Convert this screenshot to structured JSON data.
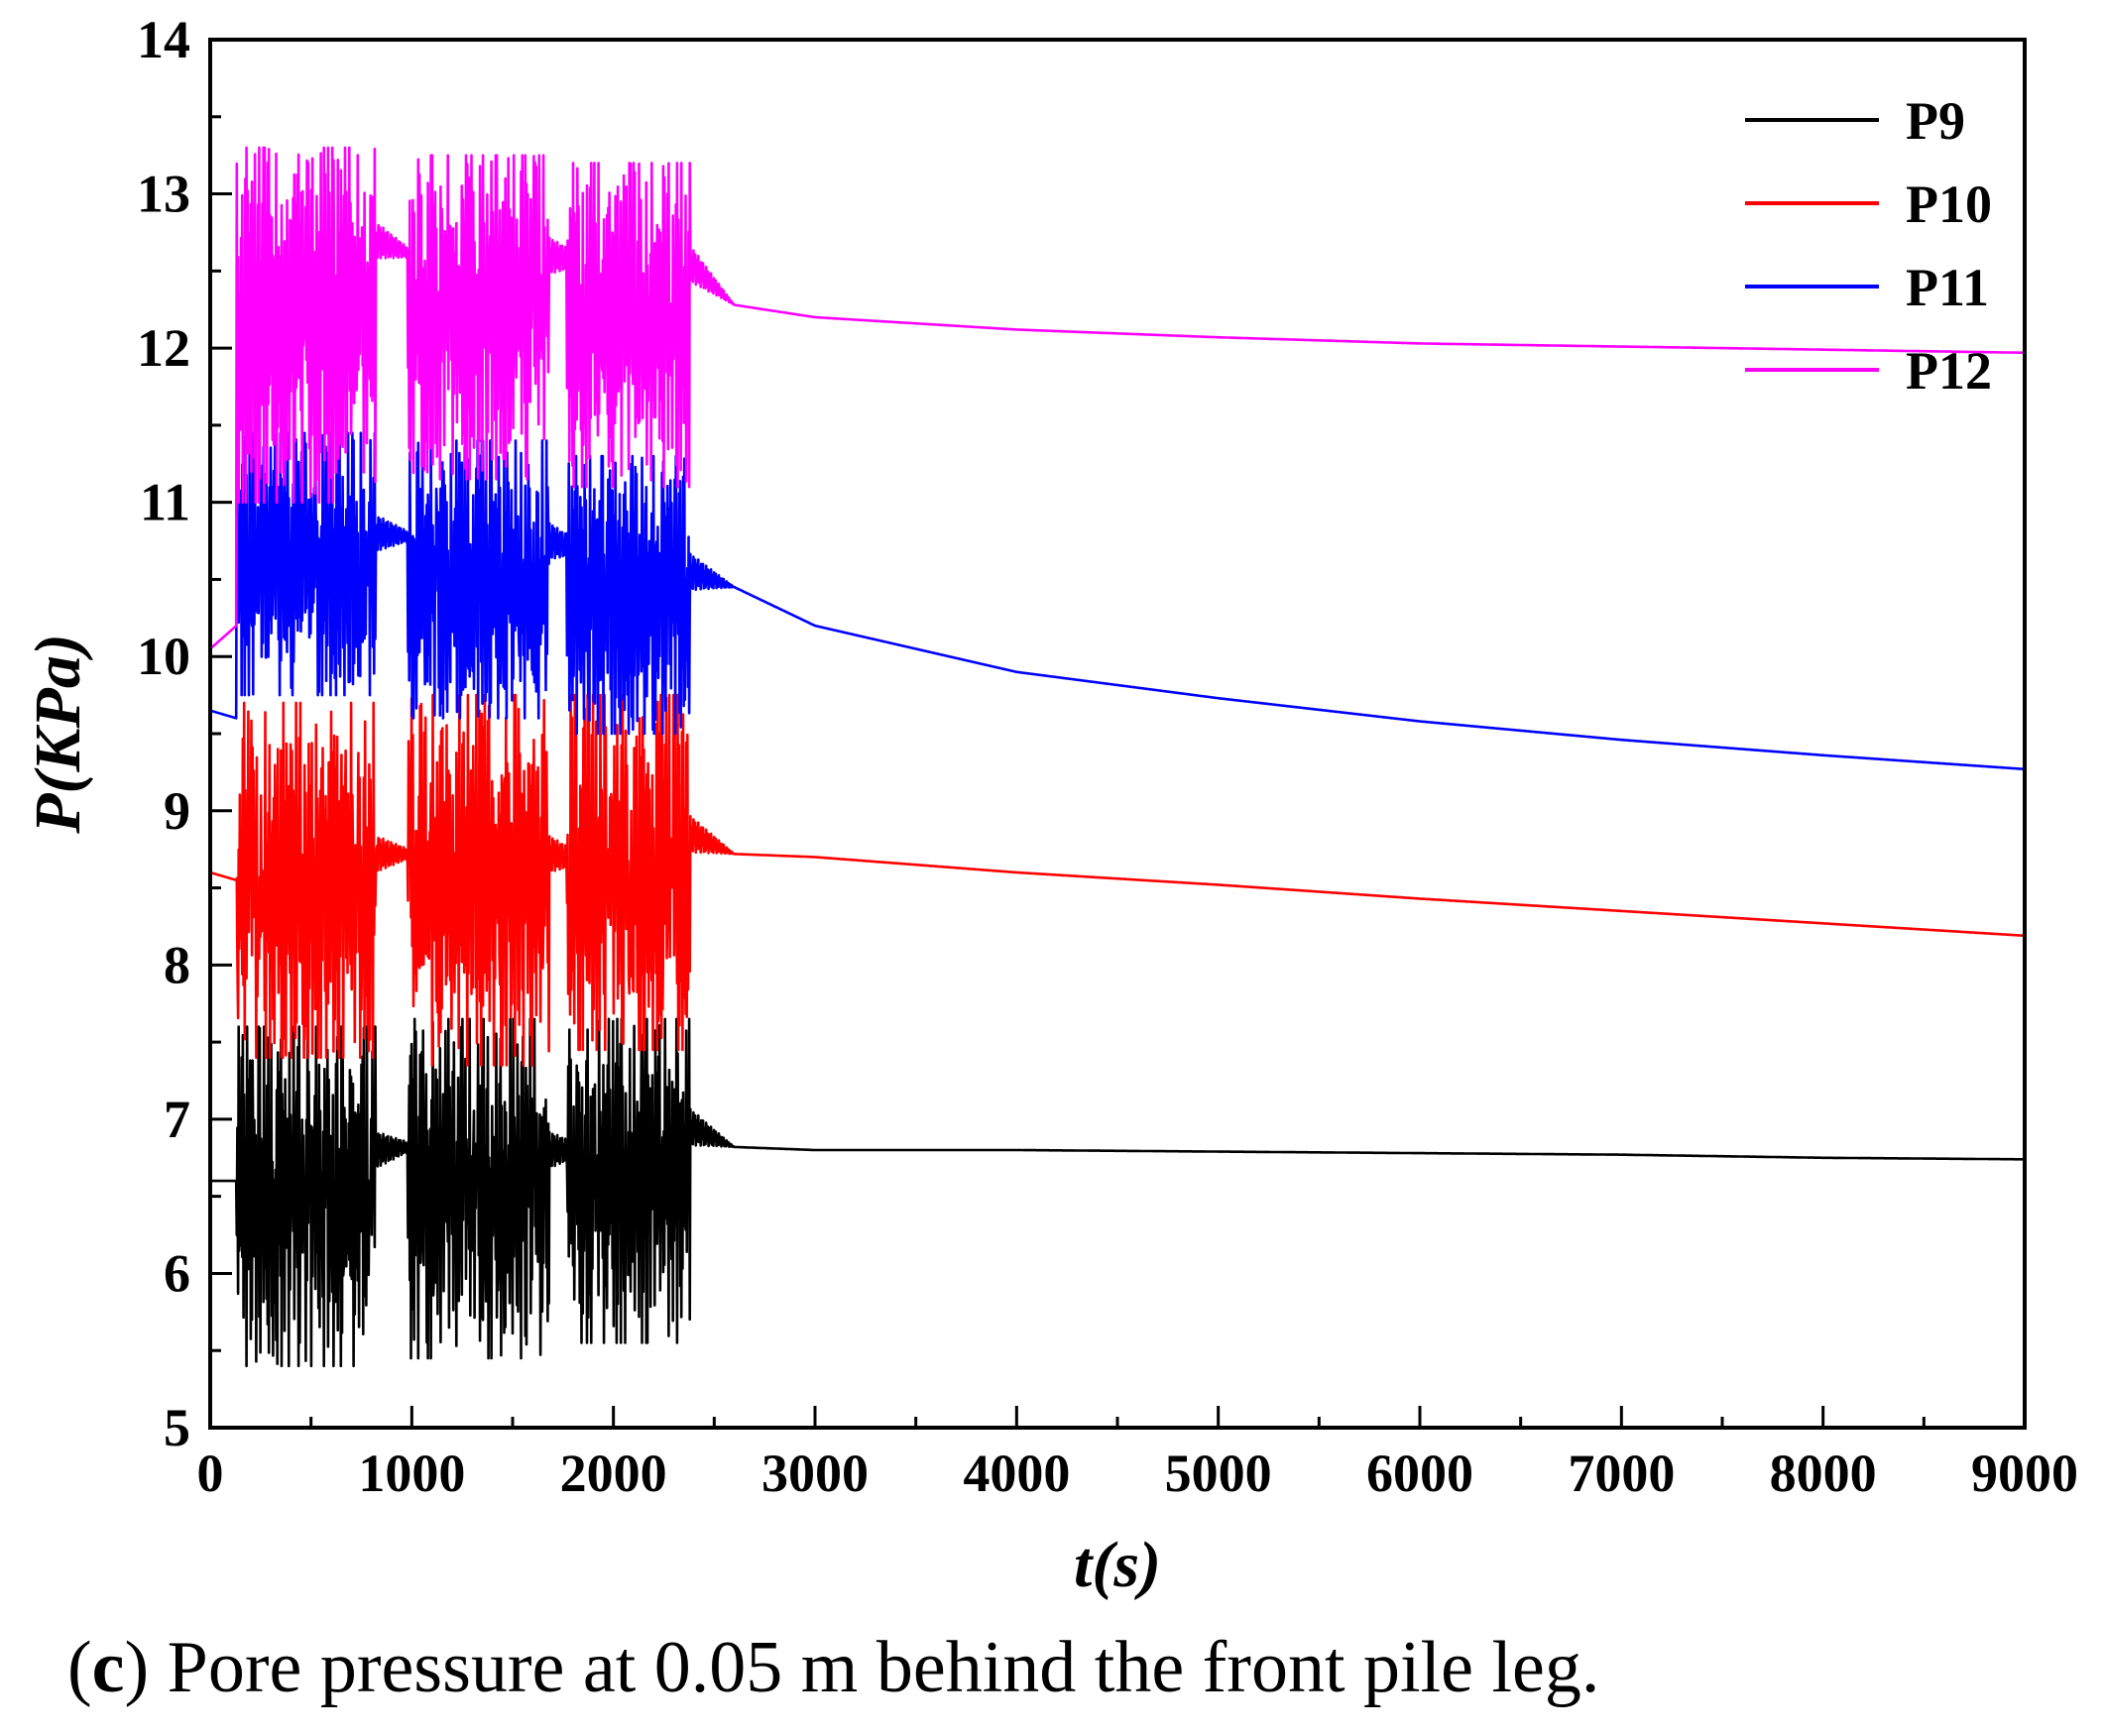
{
  "chart_data": {
    "type": "line",
    "title": "",
    "xlabel": "t(s)",
    "ylabel": "P(KPa)",
    "xlim": [
      0,
      9000
    ],
    "ylim": [
      5,
      14
    ],
    "xticks": [
      0,
      1000,
      2000,
      3000,
      4000,
      5000,
      6000,
      7000,
      8000,
      9000
    ],
    "yticks": [
      5,
      6,
      7,
      8,
      9,
      10,
      11,
      12,
      13,
      14
    ],
    "grid": false,
    "legend_position": "top-right",
    "loading_bursts_s": [
      [
        130,
        820
      ],
      [
        980,
        1680
      ],
      [
        1770,
        2380
      ]
    ],
    "series": [
      {
        "name": "P9",
        "color": "#000000",
        "x": [
          0,
          130,
          820,
          980,
          1680,
          1770,
          2380,
          2600,
          3000,
          4000,
          5000,
          6000,
          7000,
          8000,
          9000
        ],
        "y": [
          6.6,
          6.6,
          6.8,
          6.82,
          6.8,
          6.8,
          6.95,
          6.82,
          6.8,
          6.8,
          6.79,
          6.78,
          6.77,
          6.75,
          6.74
        ],
        "burst_mean": [
          6.5,
          6.55,
          6.6
        ],
        "burst_amplitude": [
          1.1,
          1.1,
          1.05
        ]
      },
      {
        "name": "P10",
        "color": "#ff0000",
        "x": [
          0,
          130,
          820,
          980,
          1680,
          1770,
          2380,
          2600,
          3000,
          4000,
          5000,
          6000,
          7000,
          8000,
          9000
        ],
        "y": [
          8.6,
          8.55,
          8.72,
          8.72,
          8.72,
          8.7,
          8.85,
          8.72,
          8.7,
          8.6,
          8.52,
          8.43,
          8.35,
          8.27,
          8.19
        ],
        "burst_mean": [
          8.55,
          8.55,
          8.6
        ],
        "burst_amplitude": [
          1.15,
          1.2,
          1.15
        ]
      },
      {
        "name": "P11",
        "color": "#0000ff",
        "x": [
          0,
          130,
          820,
          980,
          1680,
          1770,
          2380,
          2600,
          3000,
          4000,
          5000,
          6000,
          7000,
          8000,
          9000
        ],
        "y": [
          9.65,
          9.6,
          10.8,
          10.78,
          10.75,
          10.72,
          10.55,
          10.45,
          10.2,
          9.9,
          9.73,
          9.58,
          9.46,
          9.36,
          9.27
        ],
        "burst_mean": [
          10.6,
          10.5,
          10.4
        ],
        "burst_amplitude": [
          0.85,
          0.9,
          0.9
        ]
      },
      {
        "name": "P12",
        "color": "#ff00ff",
        "x": [
          0,
          130,
          820,
          980,
          1680,
          1770,
          2380,
          2600,
          3000,
          4000,
          5000,
          6000,
          7000,
          8000,
          9000
        ],
        "y": [
          10.05,
          10.2,
          12.7,
          12.62,
          12.6,
          12.58,
          12.55,
          12.28,
          12.2,
          12.12,
          12.07,
          12.03,
          12.01,
          11.99,
          11.97
        ],
        "burst_mean": [
          12.15,
          12.2,
          12.15
        ],
        "burst_amplitude": [
          1.15,
          1.05,
          1.05
        ]
      }
    ]
  },
  "caption": {
    "label": "c",
    "text": "Pore pressure at 0.05 m behind the front pile leg."
  }
}
